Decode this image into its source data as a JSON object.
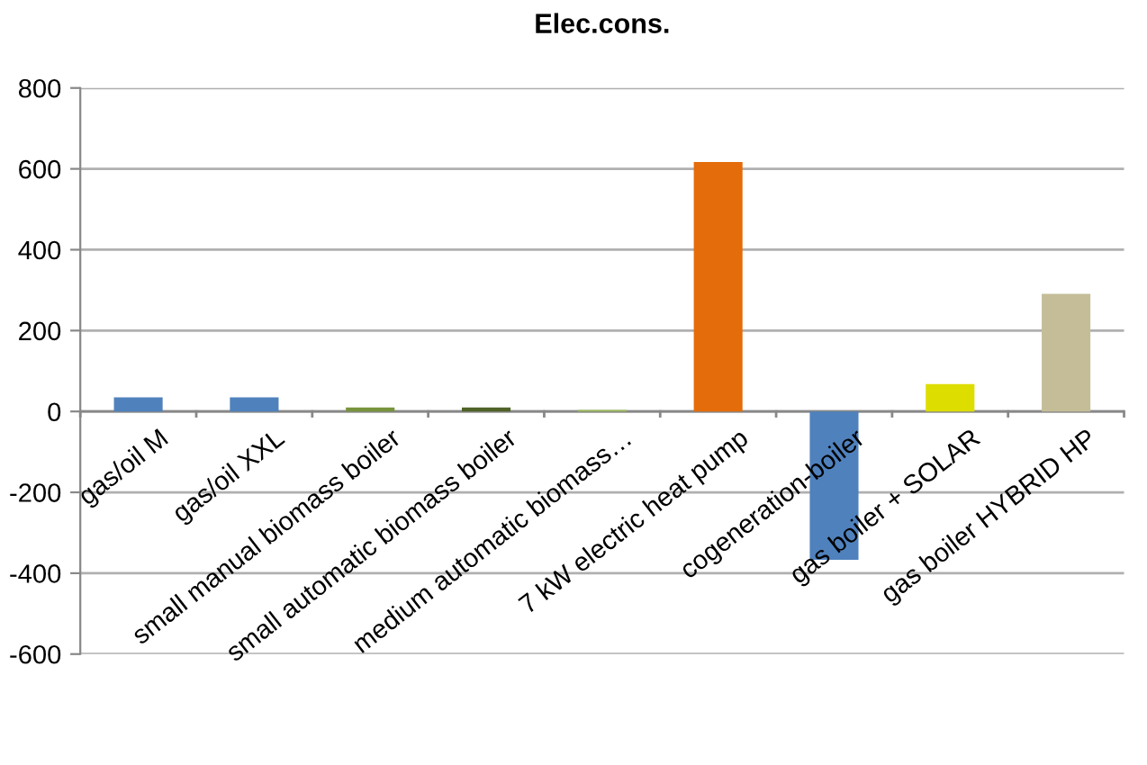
{
  "chart_data": {
    "type": "bar",
    "title": "Elec.cons.",
    "categories": [
      "gas/oil M",
      "gas/oil XXL",
      "small manual biomass boiler",
      "small automatic biomass boiler",
      "medium automatic biomass…",
      "7 kW electric heat pump",
      "cogeneration-boiler",
      "gas boiler + SOLAR",
      "gas boiler HYBRID HP"
    ],
    "values": [
      35,
      35,
      10,
      10,
      4,
      617,
      -367,
      68,
      291
    ],
    "colors": [
      "#4f81bd",
      "#4f81bd",
      "#77933c",
      "#4f6228",
      "#9bbb59",
      "#e46c0a",
      "#4f81bd",
      "#dddd00",
      "#c4bd97"
    ],
    "ylim": [
      -600,
      800
    ],
    "yticks": [
      -600,
      -400,
      -200,
      0,
      200,
      400,
      600,
      800
    ],
    "grid": "y",
    "legend": false
  }
}
